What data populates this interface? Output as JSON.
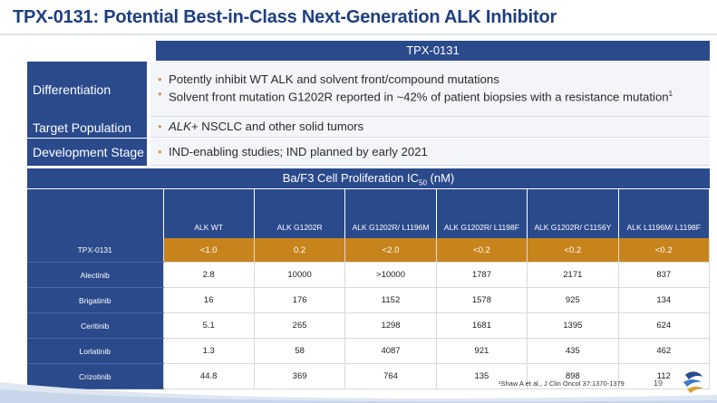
{
  "slide": {
    "title": "TPX-0131: Potential Best-in-Class Next-Generation ALK Inhibitor",
    "page_number": "19",
    "footnote": "¹Shaw A et al., J Clin Oncol 37:1370-1379"
  },
  "info_table": {
    "header": "TPX-0131",
    "rows": [
      {
        "label": "Differentiation",
        "bullets": [
          {
            "text": "Potently inhibit WT ALK and solvent front/compound mutations"
          },
          {
            "text": "Solvent front mutation G1202R reported in ~42% of patient biopsies with a resistance mutation",
            "sup": "1"
          }
        ]
      },
      {
        "label": "Target Population",
        "bullets": [
          {
            "em": "ALK+",
            "text": " NSCLC and other solid tumors"
          }
        ]
      },
      {
        "label": "Development Stage",
        "bullets": [
          {
            "text": "IND-enabling studies; IND planned by early 2021"
          }
        ]
      }
    ]
  },
  "ic50_table": {
    "title_pre": "Ba/F3 Cell Proliferation IC",
    "title_sub": "50",
    "title_post": " (nM)",
    "columns": [
      "ALK WT",
      "ALK G1202R",
      "ALK G1202R/ L1196M",
      "ALK G1202R/ L1198F",
      "ALK G1202R/ C1156Y",
      "ALK L1196M/ L1198F"
    ],
    "rows": [
      {
        "drug": "TPX-0131",
        "values": [
          "<1.0",
          "0.2",
          "<2.0",
          "<0.2",
          "<0.2",
          "<0.2"
        ]
      },
      {
        "drug": "Alectinib",
        "values": [
          "2.8",
          "10000",
          ">10000",
          "1787",
          "2171",
          "837"
        ]
      },
      {
        "drug": "Brigatinib",
        "values": [
          "16",
          "176",
          "1152",
          "1578",
          "925",
          "134"
        ]
      },
      {
        "drug": "Ceritinib",
        "values": [
          "5.1",
          "265",
          "1298",
          "1681",
          "1395",
          "624"
        ]
      },
      {
        "drug": "Lorlatinib",
        "values": [
          "1.3",
          "58",
          "4087",
          "921",
          "435",
          "462"
        ]
      },
      {
        "drug": "Crizotinib",
        "values": [
          "44.8",
          "369",
          "764",
          "135",
          "898",
          "112"
        ]
      }
    ]
  },
  "colors": {
    "navy": "#2a4a8c",
    "title_blue": "#1f3f7f",
    "highlight_orange": "#c8841c",
    "bullet_gold": "#c8a060"
  }
}
